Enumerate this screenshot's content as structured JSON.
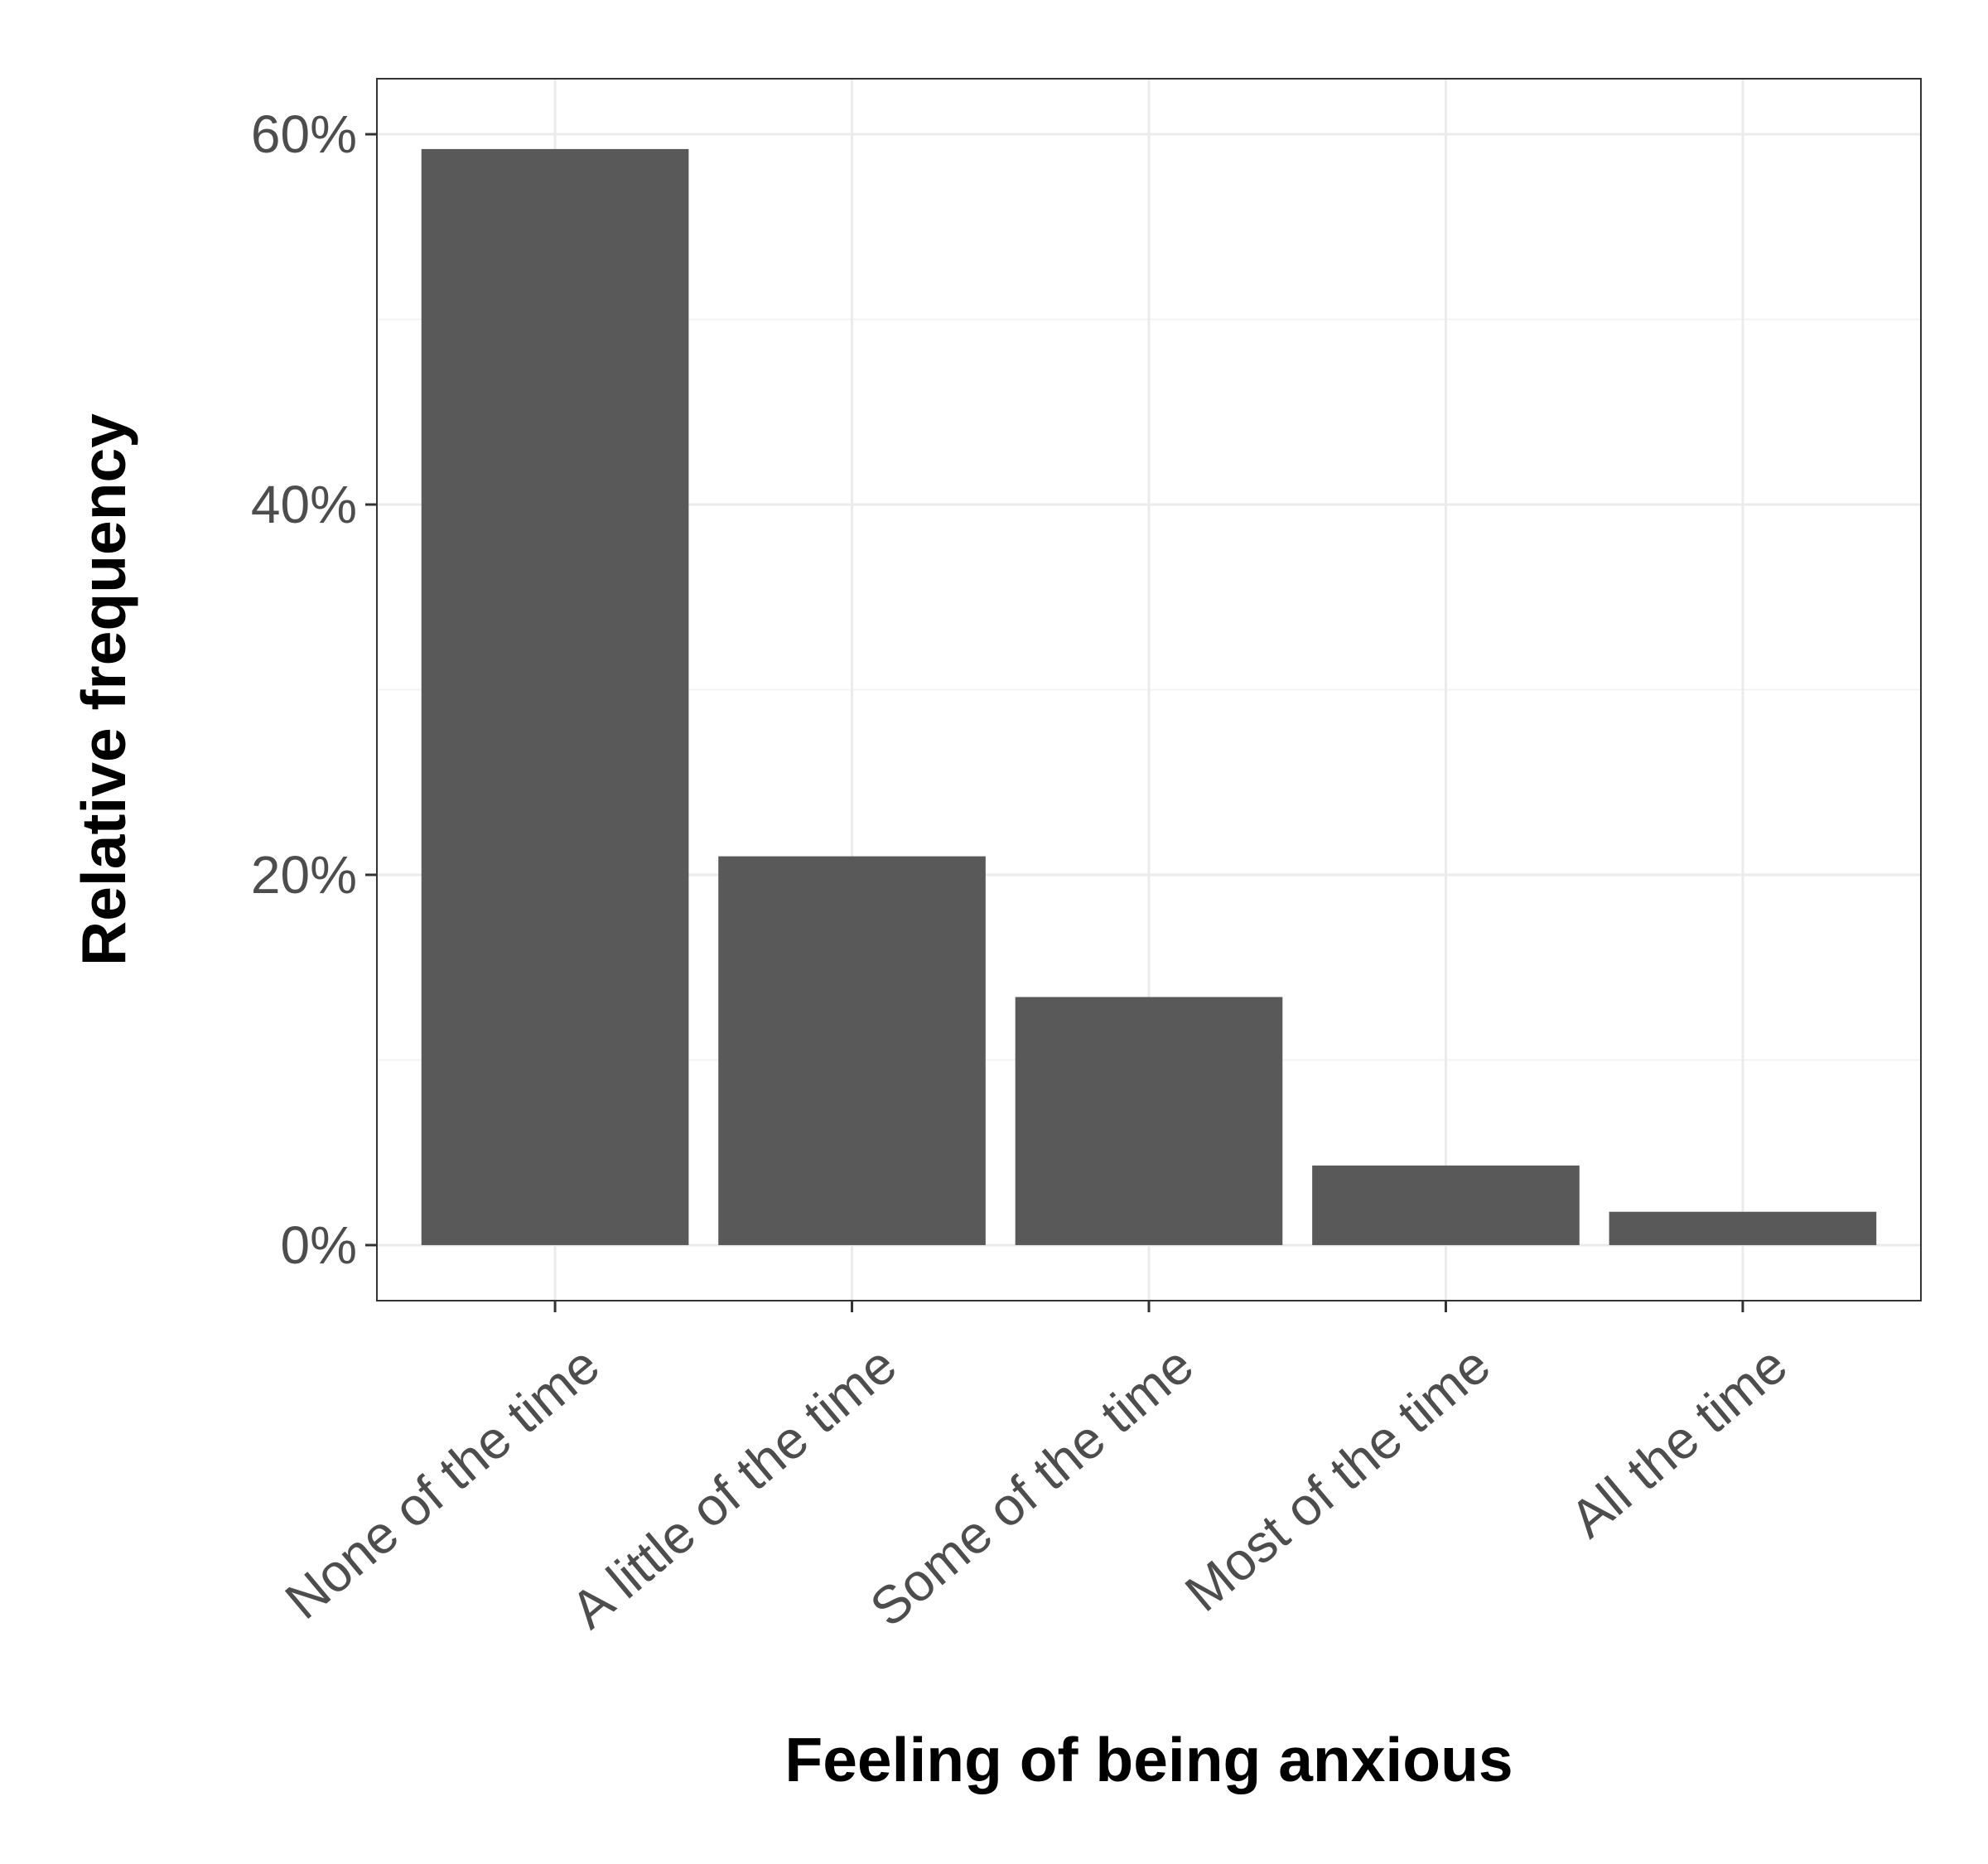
{
  "chart_data": {
    "type": "bar",
    "title": "",
    "xlabel": "Feeling of being anxious",
    "ylabel": "Relative frequency",
    "categories": [
      "None of the time",
      "A little of the time",
      "Some of the time",
      "Most of the time",
      "All the time"
    ],
    "values": [
      59.2,
      21.0,
      13.4,
      4.3,
      1.8
    ],
    "value_unit": "%",
    "ylim": [
      -3,
      63
    ],
    "y_ticks": [
      0,
      20,
      40,
      60
    ],
    "y_tick_labels": [
      "0%",
      "20%",
      "40%",
      "60%"
    ],
    "grid": true,
    "legend": "none",
    "colors": {
      "bar": "#595959",
      "panel_border": "#333333",
      "grid_major": "#ebebeb",
      "grid_minor": "#f3f3f3",
      "tick_text": "#4d4d4d",
      "axis_title": "#000000",
      "background": "#ffffff"
    }
  }
}
